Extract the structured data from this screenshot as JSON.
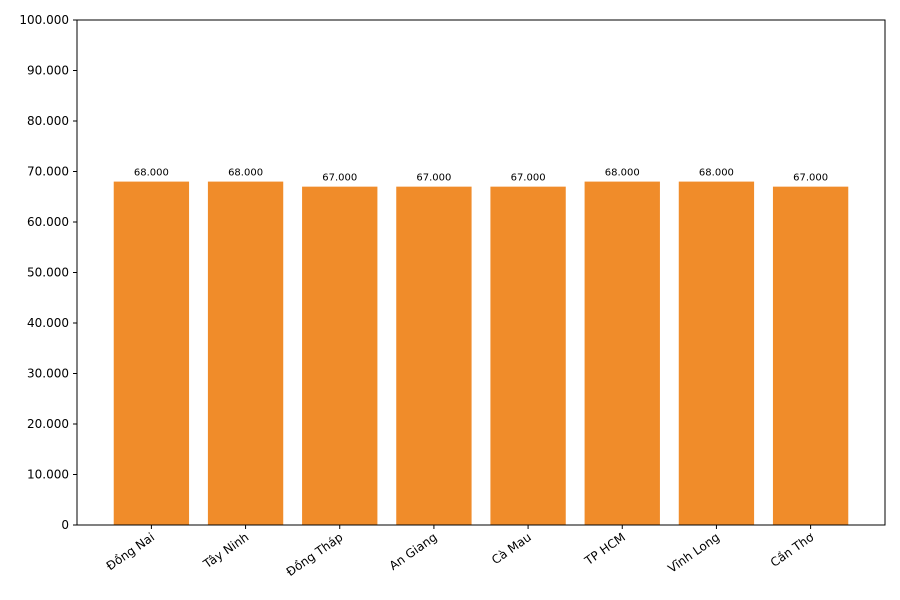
{
  "chart_data": {
    "type": "bar",
    "categories": [
      "Đồng Nai",
      "Tây Ninh",
      "Đồng Tháp",
      "An Giang",
      "Cà Mau",
      "TP HCM",
      "Vĩnh Long",
      "Cần Thơ"
    ],
    "values": [
      68000,
      68000,
      67000,
      67000,
      67000,
      68000,
      68000,
      67000
    ],
    "value_labels": [
      "68.000",
      "68.000",
      "67.000",
      "67.000",
      "67.000",
      "68.000",
      "68.000",
      "67.000"
    ],
    "color": "#f08c2a",
    "ylim": [
      0,
      100000
    ],
    "yticks": [
      0,
      {
        "value": 10000,
        "label": "10.000"
      },
      {
        "value": 20000,
        "label": "20.000"
      },
      {
        "value": 30000,
        "label": "30.000"
      },
      {
        "value": 40000,
        "label": "40.000"
      },
      {
        "value": 50000,
        "label": "50.000"
      },
      {
        "value": 60000,
        "label": "60.000"
      },
      {
        "value": 70000,
        "label": "70.000"
      },
      {
        "value": 80000,
        "label": "80.000"
      },
      {
        "value": 90000,
        "label": "90.000"
      },
      {
        "value": 100000,
        "label": "100.000"
      }
    ],
    "grid": false
  }
}
